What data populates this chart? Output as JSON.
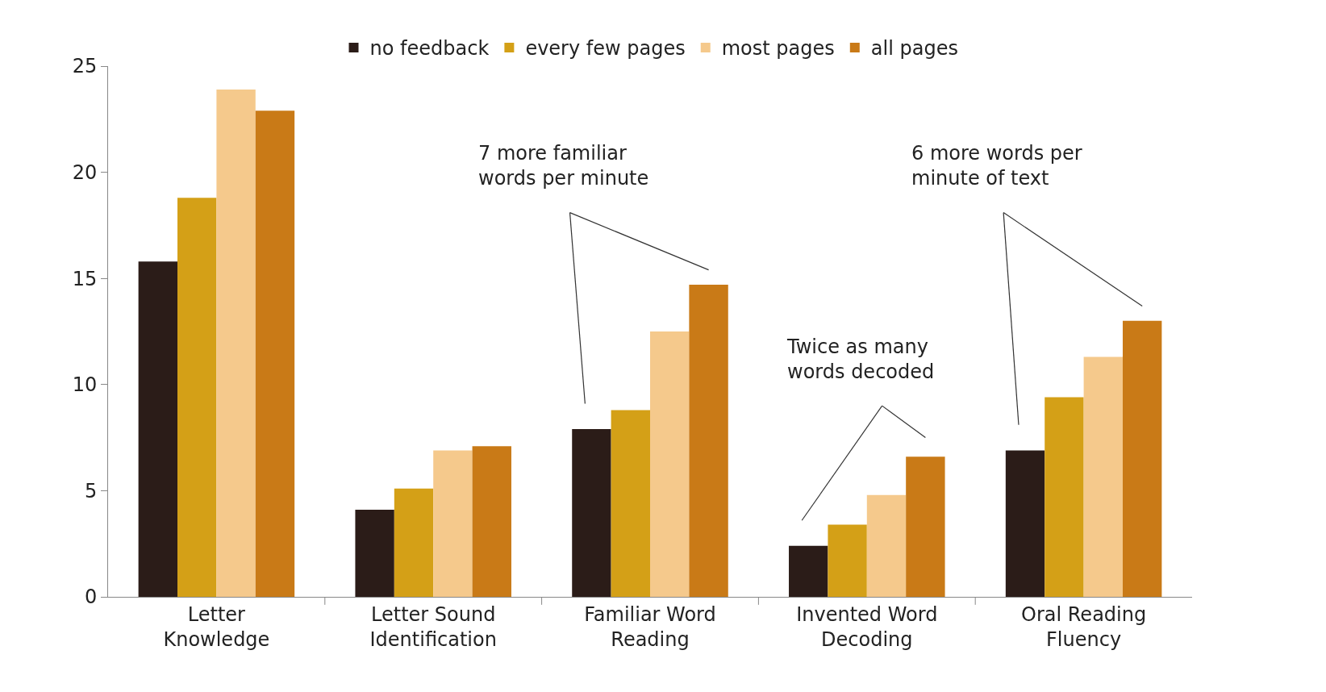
{
  "chart_data": {
    "type": "bar",
    "categories": [
      "Letter Knowledge",
      "Letter Sound Identification",
      "Familiar Word Reading",
      "Invented Word Decoding",
      "Oral Reading Fluency"
    ],
    "series": [
      {
        "name": "no feedback",
        "color": "#2b1c18",
        "values": [
          15.8,
          4.1,
          7.9,
          2.4,
          6.9
        ]
      },
      {
        "name": "every few pages",
        "color": "#d4a017",
        "values": [
          18.8,
          5.1,
          8.8,
          3.4,
          9.4
        ]
      },
      {
        "name": "most pages",
        "color": "#f5c98c",
        "values": [
          23.9,
          6.9,
          12.5,
          4.8,
          11.3
        ]
      },
      {
        "name": "all pages",
        "color": "#c97a17",
        "values": [
          22.9,
          7.1,
          14.7,
          6.6,
          13.0
        ]
      }
    ],
    "ylim": [
      0,
      25
    ],
    "yticks": [
      0,
      5,
      10,
      15,
      20,
      25
    ],
    "grid": false,
    "legend": "top",
    "annotations": [
      "7 more familiar words per minute",
      "Twice as many words decoded",
      "6 more words per minute of text"
    ]
  }
}
